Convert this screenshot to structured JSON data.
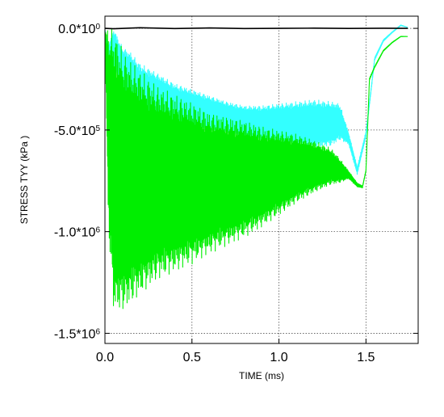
{
  "chart_data": {
    "type": "line",
    "xlabel": "TIME (ms)",
    "ylabel": "STRESS TYY (kPa )",
    "xlim": [
      0.0,
      1.8
    ],
    "ylim": [
      -1550000,
      60000
    ],
    "x_ticks": [
      {
        "value": 0.0,
        "label": "0.0"
      },
      {
        "value": 0.5,
        "label": "0.5"
      },
      {
        "value": 1.0,
        "label": "1.0"
      },
      {
        "value": 1.5,
        "label": "1.5"
      }
    ],
    "y_ticks": [
      {
        "value": 0,
        "mantissa": "0.0*10",
        "exponent": "0"
      },
      {
        "value": -500000,
        "mantissa": "-5.0*10",
        "exponent": "5"
      },
      {
        "value": -1000000,
        "mantissa": "-1.0*10",
        "exponent": "6"
      },
      {
        "value": -1500000,
        "mantissa": "-1.5*10",
        "exponent": "6"
      }
    ],
    "grid": "dotted",
    "series": [
      {
        "color": "#000000",
        "style": "flat",
        "x": [
          0.0,
          0.05,
          0.2,
          0.4,
          0.6,
          0.8,
          1.0,
          1.2,
          1.4,
          1.6,
          1.74
        ],
        "y": [
          0,
          -2000,
          3000,
          -1000,
          2000,
          -1000,
          0,
          1000,
          -500,
          500,
          0
        ]
      },
      {
        "color": "#33ffff",
        "style": "oscillating",
        "x": [
          0.0,
          0.02,
          0.05,
          0.1,
          0.15,
          0.2,
          0.3,
          0.4,
          0.5,
          0.6,
          0.7,
          0.8,
          0.9,
          1.0,
          1.1,
          1.2,
          1.3,
          1.35,
          1.4,
          1.45,
          1.5,
          1.55,
          1.6,
          1.65,
          1.7,
          1.74
        ],
        "y": [
          -5000,
          -150000,
          -100000,
          -200000,
          -250000,
          -320000,
          -340000,
          -380000,
          -400000,
          -420000,
          -440000,
          -460000,
          -470000,
          -470000,
          -470000,
          -470000,
          -470000,
          -460000,
          -540000,
          -700000,
          -520000,
          -150000,
          -60000,
          -20000,
          15000,
          5000
        ],
        "amp": [
          0,
          80000,
          100000,
          110000,
          130000,
          150000,
          120000,
          110000,
          100000,
          90000,
          80000,
          80000,
          90000,
          100000,
          110000,
          120000,
          110000,
          90000,
          30000,
          20000,
          15000,
          8000,
          5000,
          3000,
          2000,
          0
        ]
      },
      {
        "color": "#00ee00",
        "style": "oscillating",
        "x": [
          0.0,
          0.02,
          0.05,
          0.1,
          0.15,
          0.2,
          0.3,
          0.4,
          0.5,
          0.6,
          0.7,
          0.8,
          0.9,
          1.0,
          1.1,
          1.2,
          1.3,
          1.35,
          1.4,
          1.45,
          1.48,
          1.5,
          1.52,
          1.55,
          1.6,
          1.65,
          1.7,
          1.74
        ],
        "y": [
          -10000,
          -500000,
          -700000,
          -750000,
          -760000,
          -760000,
          -760000,
          -760000,
          -760000,
          -760000,
          -750000,
          -740000,
          -730000,
          -710000,
          -690000,
          -680000,
          -680000,
          -700000,
          -720000,
          -770000,
          -780000,
          -700000,
          -250000,
          -190000,
          -110000,
          -70000,
          -40000,
          -40000
        ],
        "amp": [
          0,
          500000,
          700000,
          650000,
          600000,
          560000,
          480000,
          440000,
          400000,
          350000,
          320000,
          290000,
          250000,
          210000,
          170000,
          130000,
          90000,
          60000,
          20000,
          10000,
          5000,
          5000,
          5000,
          4000,
          3000,
          2000,
          1000,
          0
        ]
      }
    ]
  }
}
